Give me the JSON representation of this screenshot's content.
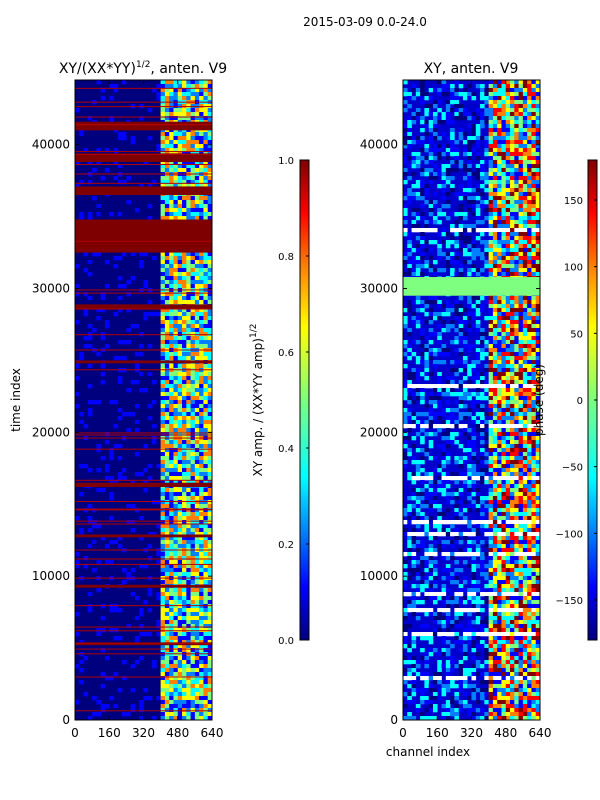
{
  "suptitle": "2015-03-09 0.0-24.0",
  "chart_data": [
    {
      "type": "heatmap",
      "title": "XY/(XX*YY)^{1/2}, anten. V9",
      "title_main": "XY/(XX*YY)",
      "title_exp": "1/2",
      "title_tail": ", anten. V9",
      "xlabel": "",
      "ylabel": "time index",
      "xlim": [
        0,
        640
      ],
      "ylim": [
        0,
        44500
      ],
      "xticks": [
        0,
        160,
        320,
        480,
        640
      ],
      "yticks": [
        0,
        10000,
        20000,
        30000,
        40000
      ],
      "colorbar": {
        "label": "XY amp. / (XX*YY amp)^{1/2}",
        "label_main": "XY amp. / (XX*YY amp)",
        "label_exp": "1/2",
        "range": [
          0.0,
          1.0
        ],
        "ticks": [
          0.0,
          0.2,
          0.4,
          0.6,
          0.8,
          1.0
        ],
        "tick_labels": [
          "0.0",
          "0.2",
          "0.4",
          "0.6",
          "0.8",
          "1.0"
        ]
      },
      "band_channels": [
        400,
        620
      ],
      "flagged_time_ranges": [
        [
          32500,
          34800
        ],
        [
          36500,
          37100
        ],
        [
          38800,
          39400
        ],
        [
          41000,
          41600
        ],
        [
          16200,
          16500
        ],
        [
          28600,
          28900
        ],
        [
          5200,
          5400
        ],
        [
          9200,
          9400
        ],
        [
          12700,
          12900
        ],
        [
          24800,
          25000
        ]
      ]
    },
    {
      "type": "heatmap",
      "title": "XY, anten. V9",
      "xlabel": "channel index",
      "ylabel": "",
      "xlim": [
        0,
        640
      ],
      "ylim": [
        0,
        44500
      ],
      "xticks": [
        0,
        160,
        320,
        480,
        640
      ],
      "yticks": [
        0,
        10000,
        20000,
        30000,
        40000
      ],
      "colorbar": {
        "label": "phase (deg)",
        "range": [
          -180,
          180
        ],
        "ticks": [
          -150,
          -100,
          -50,
          0,
          50,
          100,
          150
        ],
        "tick_labels": [
          "−150",
          "−100",
          "−50",
          "0",
          "50",
          "100",
          "150"
        ]
      },
      "band_channels": [
        400,
        620
      ],
      "flagged_time_ranges": [
        [
          29500,
          30800
        ]
      ]
    }
  ],
  "colors": {
    "jet": [
      "#00007f",
      "#0000ff",
      "#007fff",
      "#00ffff",
      "#7fff7f",
      "#ffff00",
      "#ff7f00",
      "#ff0000",
      "#7f0000"
    ]
  }
}
